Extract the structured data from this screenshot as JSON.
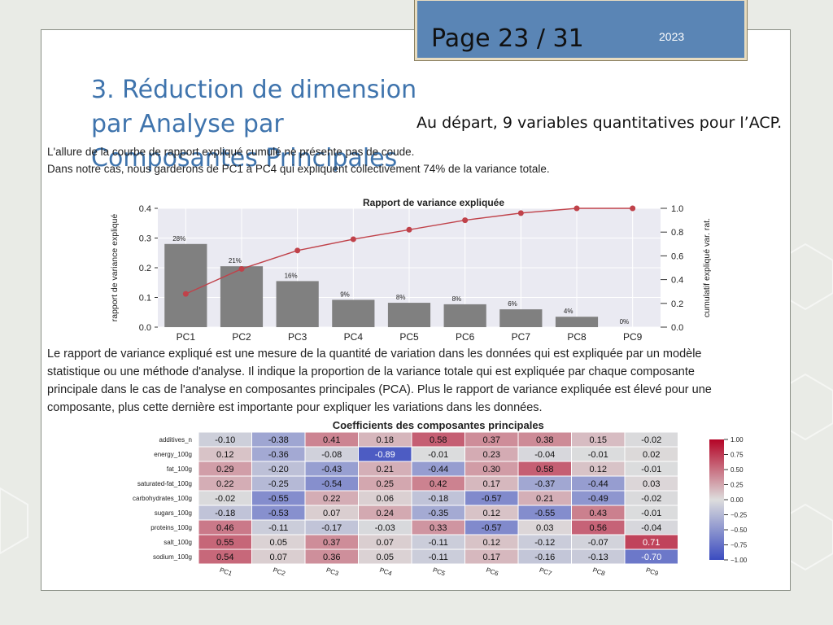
{
  "header": {
    "page": "Page 23 / 31",
    "year": "2023"
  },
  "title": {
    "line1": "3. Réduction de dimension par Analyse par",
    "line2": "Composantes Principales"
  },
  "subtitle": "Au départ, 9 variables quantitatives pour l’ACP.",
  "intro_lines": [
    "L'allure de la courbe de rapport expliqué cumulé ne présente pas de coude.",
    "Dans notre cas, nous garderons de PC1 à PC4 qui expliquent collectivement 74% de la variance totale."
  ],
  "explanation_lines": [
    "Le rapport de variance expliqué est une mesure de la quantité de variation dans les données qui est expliquée par un modèle",
    "statistique ou une méthode d'analyse. Il indique la proportion de la variance totale qui est expliquée par chaque composante",
    "principale dans le cas de l'analyse en composantes principales (PCA). Plus le rapport de variance expliquée est élevé pour une",
    "composante, plus cette dernière est importante pour expliquer les variations dans les données."
  ],
  "chart_data": [
    {
      "type": "bar",
      "title": "Rapport de variance expliquée",
      "ylabel": "rapport de variance expliqué",
      "y2label": "cumulatif expliqué var. rat.",
      "categories": [
        "PC1",
        "PC2",
        "PC3",
        "PC4",
        "PC5",
        "PC6",
        "PC7",
        "PC8",
        "PC9"
      ],
      "values": [
        0.28,
        0.205,
        0.155,
        0.092,
        0.082,
        0.077,
        0.06,
        0.035,
        0.0
      ],
      "data_labels": [
        "28%",
        "21%",
        "16%",
        "9%",
        "8%",
        "8%",
        "6%",
        "4%",
        "0%"
      ],
      "cumulative": [
        0.28,
        0.49,
        0.645,
        0.74,
        0.82,
        0.9,
        0.96,
        1.0,
        1.0
      ],
      "ylim": [
        0,
        0.4
      ],
      "y2lim": [
        0,
        1.0
      ],
      "yticks": [
        "0.0",
        "0.1",
        "0.2",
        "0.3",
        "0.4"
      ],
      "y2ticks": [
        "0.0",
        "0.2",
        "0.4",
        "0.6",
        "0.8",
        "1.0"
      ],
      "bar_color": "#808080",
      "line_color": "#c0424a",
      "grid": true
    },
    {
      "type": "heatmap",
      "title": "Coefficients des composantes principales",
      "columns": [
        "PC1",
        "PC2",
        "PC3",
        "PC4",
        "PC5",
        "PC6",
        "PC7",
        "PC8",
        "PC9"
      ],
      "rows": [
        "additives_n",
        "energy_100g",
        "fat_100g",
        "saturated-fat_100g",
        "carbohydrates_100g",
        "sugars_100g",
        "proteins_100g",
        "salt_100g",
        "sodium_100g"
      ],
      "values": [
        [
          -0.1,
          -0.38,
          0.41,
          0.18,
          0.58,
          0.37,
          0.38,
          0.15,
          -0.02
        ],
        [
          0.12,
          -0.36,
          -0.08,
          -0.89,
          -0.01,
          0.23,
          -0.04,
          -0.01,
          0.02
        ],
        [
          0.29,
          -0.2,
          -0.43,
          0.21,
          -0.44,
          0.3,
          0.58,
          0.12,
          -0.01
        ],
        [
          0.22,
          -0.25,
          -0.54,
          0.25,
          0.42,
          0.17,
          -0.37,
          -0.44,
          0.03
        ],
        [
          -0.02,
          -0.55,
          0.22,
          0.06,
          -0.18,
          -0.57,
          0.21,
          -0.49,
          -0.02
        ],
        [
          -0.18,
          -0.53,
          0.07,
          0.24,
          -0.35,
          0.12,
          -0.55,
          0.43,
          -0.01
        ],
        [
          0.46,
          -0.11,
          -0.17,
          -0.03,
          0.33,
          -0.57,
          0.03,
          0.56,
          -0.04
        ],
        [
          0.55,
          0.05,
          0.37,
          0.07,
          -0.11,
          0.12,
          -0.12,
          -0.07,
          0.71
        ],
        [
          0.54,
          0.07,
          0.36,
          0.05,
          -0.11,
          0.17,
          -0.16,
          -0.13,
          -0.7
        ]
      ],
      "cell_labels": [
        [
          "-0.10",
          "-0.38",
          "0.41",
          "0.18",
          "0.58",
          "0.37",
          "0.38",
          "0.15",
          "-0.02"
        ],
        [
          "0.12",
          "-0.36",
          "-0.08",
          "-0.89",
          "-0.01",
          "0.23",
          "-0.04",
          "-0.01",
          "0.02"
        ],
        [
          "0.29",
          "-0.20",
          "-0.43",
          "0.21",
          "-0.44",
          "0.30",
          "0.58",
          "0.12",
          "-0.01"
        ],
        [
          "0.22",
          "-0.25",
          "-0.54",
          "0.25",
          "0.42",
          "0.17",
          "-0.37",
          "-0.44",
          "0.03"
        ],
        [
          "-0.02",
          "-0.55",
          "0.22",
          "0.06",
          "-0.18",
          "-0.57",
          "0.21",
          "-0.49",
          "-0.02"
        ],
        [
          "-0.18",
          "-0.53",
          "0.07",
          "0.24",
          "-0.35",
          "0.12",
          "-0.55",
          "0.43",
          "-0.01"
        ],
        [
          "0.46",
          "-0.11",
          "-0.17",
          "-0.03",
          "0.33",
          "-0.57",
          "0.03",
          "0.56",
          "-0.04"
        ],
        [
          "0.55",
          "0.05",
          "0.37",
          "0.07",
          "-0.11",
          "0.12",
          "-0.12",
          "-0.07",
          "0.71"
        ],
        [
          "0.54",
          "0.07",
          "0.36",
          "0.05",
          "-0.11",
          "0.17",
          "-0.16",
          "-0.13",
          "-0.70"
        ]
      ],
      "colorbar_ticks": [
        "1.00",
        "0.75",
        "0.50",
        "0.25",
        "0.00",
        "−0.25",
        "−0.50",
        "−0.75",
        "−1.00"
      ],
      "vmin": -1.0,
      "vmax": 1.0,
      "cmap": "coolwarm"
    }
  ]
}
